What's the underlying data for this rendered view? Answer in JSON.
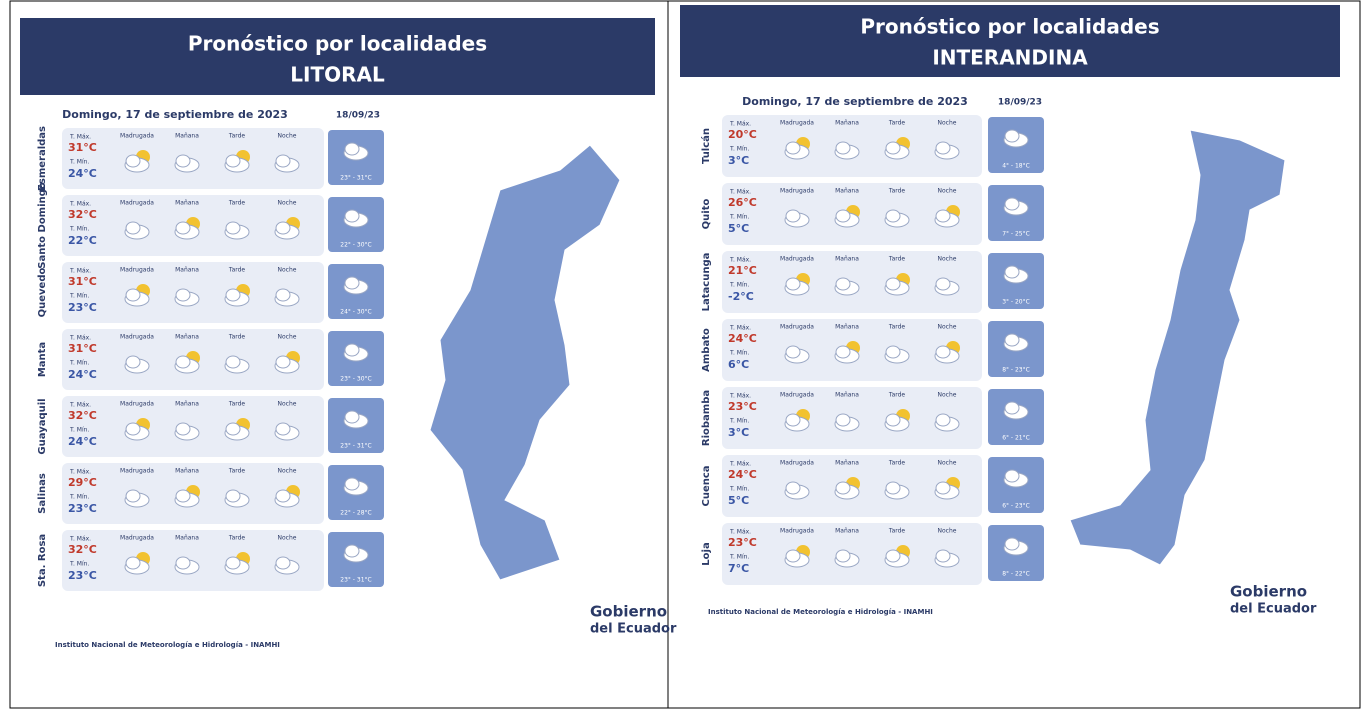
{
  "panels": [
    {
      "title_line1": "Pronóstico por localidades",
      "title_line2": "LITORAL",
      "date": "Domingo, 17 de septiembre de 2023",
      "next_date": "18/09/23",
      "headers": [
        "Madrugada",
        "Mañana",
        "Tarde",
        "Noche"
      ],
      "tmax_label": "T. Máx.",
      "tmin_label": "T. Mín.",
      "rows": [
        {
          "city": "Esmeraldas",
          "tmax": "31°C",
          "tmin": "24°C",
          "range": "23° - 31°C"
        },
        {
          "city": "Santo Domingo",
          "tmax": "32°C",
          "tmin": "22°C",
          "range": "22° - 30°C"
        },
        {
          "city": "Quevedo",
          "tmax": "31°C",
          "tmin": "23°C",
          "range": "24° - 30°C"
        },
        {
          "city": "Manta",
          "tmax": "31°C",
          "tmin": "24°C",
          "range": "23° - 30°C"
        },
        {
          "city": "Guayaquil",
          "tmax": "32°C",
          "tmin": "24°C",
          "range": "23° - 31°C"
        },
        {
          "city": "Salinas",
          "tmax": "29°C",
          "tmin": "23°C",
          "range": "22° - 28°C"
        },
        {
          "city": "Sta. Rosa",
          "tmax": "32°C",
          "tmin": "23°C",
          "range": "23° - 31°C"
        }
      ],
      "footer": "Instituto Nacional de Meteorología e Hidrología - INAMHI",
      "logo_line1": "Gobierno",
      "logo_line2": "del Ecuador"
    },
    {
      "title_line1": "Pronóstico por localidades",
      "title_line2": "INTERANDINA",
      "date": "Domingo, 17 de septiembre de 2023",
      "next_date": "18/09/23",
      "headers": [
        "Madrugada",
        "Mañana",
        "Tarde",
        "Noche"
      ],
      "tmax_label": "T. Máx.",
      "tmin_label": "T. Mín.",
      "rows": [
        {
          "city": "Tulcán",
          "tmax": "20°C",
          "tmin": "3°C",
          "range": "4° - 18°C"
        },
        {
          "city": "Quito",
          "tmax": "26°C",
          "tmin": "5°C",
          "range": "7° - 25°C"
        },
        {
          "city": "Latacunga",
          "tmax": "21°C",
          "tmin": "-2°C",
          "range": "3° - 20°C"
        },
        {
          "city": "Ambato",
          "tmax": "24°C",
          "tmin": "6°C",
          "range": "8° - 23°C"
        },
        {
          "city": "Riobamba",
          "tmax": "23°C",
          "tmin": "3°C",
          "range": "6° - 21°C"
        },
        {
          "city": "Cuenca",
          "tmax": "24°C",
          "tmin": "5°C",
          "range": "6° - 23°C"
        },
        {
          "city": "Loja",
          "tmax": "23°C",
          "tmin": "7°C",
          "range": "8° - 22°C"
        }
      ],
      "footer": "Instituto Nacional de Meteorología e Hidrología - INAMHI",
      "logo_line1": "Gobierno",
      "logo_line2": "del Ecuador"
    }
  ]
}
